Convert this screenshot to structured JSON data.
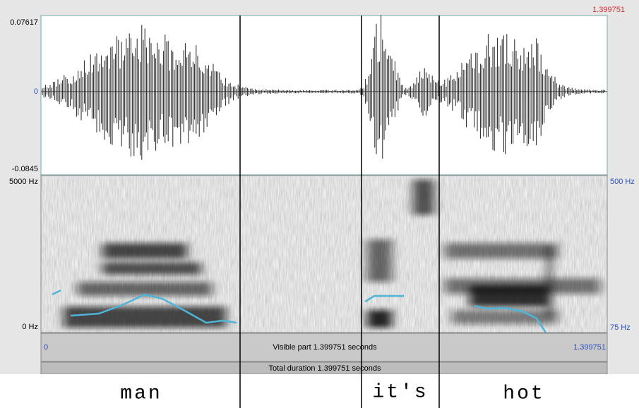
{
  "header": {
    "total_time": "1.399751"
  },
  "waveform": {
    "y_max": "0.07617",
    "y_zero": "0",
    "y_min": "-0.0845"
  },
  "spectrogram": {
    "freq_max": "5000 Hz",
    "freq_min": "0 Hz",
    "pitch_max": "500 Hz",
    "pitch_min": "75 Hz"
  },
  "visible_bar": {
    "start": "0",
    "label": "Visible part 1.399751 seconds",
    "end": "1.399751"
  },
  "total_bar": {
    "label": "Total duration 1.399751 seconds"
  },
  "tier": {
    "intervals": [
      "man",
      "it's",
      "hot"
    ]
  }
}
